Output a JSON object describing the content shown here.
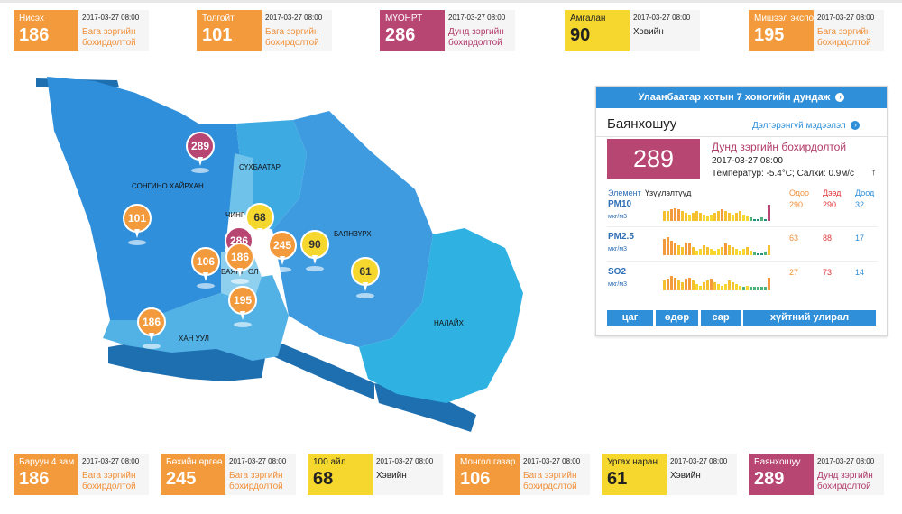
{
  "top_cards": [
    {
      "name": "Нисэх",
      "aqi": "186",
      "time": "2017-03-27 08:00",
      "status": "Бага зэргийн бохирдолтой"
    },
    {
      "name": "Толгойт",
      "aqi": "101",
      "time": "2017-03-27 08:00",
      "status": "Бага зэргийн бохирдолтой"
    },
    {
      "name": "МҮОНРТ",
      "aqi": "286",
      "time": "2017-03-27 08:00",
      "status": "Дунд зэргийн бохирдолтой"
    },
    {
      "name": "Амгалан",
      "aqi": "90",
      "time": "2017-03-27 08:00",
      "status": "Хэвийн"
    },
    {
      "name": "Мишээл экспо",
      "aqi": "195",
      "time": "2017-03-27 08:00",
      "status": "Бага зэргийн бохирдолтой"
    }
  ],
  "bottom_cards": [
    {
      "name": "Баруун 4 зам",
      "aqi": "186",
      "time": "2017-03-27 08:00",
      "status": "Бага зэргийн бохирдолтой"
    },
    {
      "name": "Бөхийн өргөө",
      "aqi": "245",
      "time": "2017-03-27 08:00",
      "status": "Бага зэргийн бохирдолтой"
    },
    {
      "name": "100 айл",
      "aqi": "68",
      "time": "2017-03-27 08:00",
      "status": "Хэвийн"
    },
    {
      "name": "Монгол газар",
      "aqi": "106",
      "time": "2017-03-27 08:00",
      "status": "Бага зэргийн бохирдолтой"
    },
    {
      "name": "Ургах наран",
      "aqi": "61",
      "time": "2017-03-27 08:00",
      "status": "Хэвийн"
    },
    {
      "name": "Баянхошуу",
      "aqi": "289",
      "time": "2017-03-27 08:00",
      "status": "Дунд зэргийн бохирдолтой"
    }
  ],
  "colors": {
    "orange": "#f39a3c",
    "purple": "#b84673",
    "yellow": "#f5d72e",
    "accent": "#2f8fd8"
  },
  "map": {
    "districts": [
      "СҮХБААТАР",
      "СОНГИНО ХАЙРХАН",
      "ЧИНГ",
      "БАЯНЗҮРХ",
      "БАЯНГ",
      "ОЛ",
      "ХАН УУЛ",
      "НАЛАЙХ"
    ],
    "pins": [
      "289",
      "101",
      "68",
      "286",
      "245",
      "90",
      "186",
      "106",
      "61",
      "195",
      "186"
    ]
  },
  "panel": {
    "header": "Улаанбаатар хотын 7 хоногийн дундаж",
    "district": "Баянхошуу",
    "more_link": "Дэлгэрэнгүй мэдээлэл",
    "aqi": "289",
    "status": "Дунд зэргийн бохирдолтой",
    "time": "2017-03-27 08:00",
    "weather": "Температур: -5.4°C; Салхи: 0.9м/с",
    "col_element": "Элемент",
    "col_values": "Үзүүлэлтүүд",
    "col_now": "Одоо",
    "col_max": "Дээд",
    "col_min": "Доод",
    "pollutants": [
      {
        "name": "PM10",
        "unit": "мкг/м3",
        "now": "290",
        "max": "290",
        "min": "32"
      },
      {
        "name": "PM2.5",
        "unit": "мкг/м3",
        "now": "63",
        "max": "88",
        "min": "17"
      },
      {
        "name": "SO2",
        "unit": "мкг/м3",
        "now": "27",
        "max": "73",
        "min": "14"
      }
    ],
    "buttons": [
      "цаг",
      "өдөр",
      "сар",
      "хүйтний улирал"
    ]
  }
}
